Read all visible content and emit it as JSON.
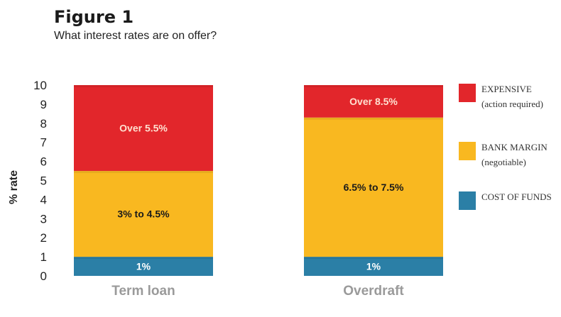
{
  "figure": {
    "title": "Figure 1",
    "subtitle": "What interest rates are on offer?"
  },
  "chart_data": {
    "type": "bar",
    "stacked": true,
    "categories": [
      "Term loan",
      "Overdraft"
    ],
    "ylabel": "% rate",
    "ylim": [
      0,
      10
    ],
    "yticks": [
      0,
      1,
      2,
      3,
      4,
      5,
      6,
      7,
      8,
      9,
      10
    ],
    "grid": false,
    "legend_position": "right",
    "series": [
      {
        "name": "COST OF FUNDS",
        "color": "#2b7fa6",
        "values": [
          1,
          1
        ],
        "labels": [
          "1%",
          "1%"
        ],
        "label_color": "#ffffff"
      },
      {
        "name": "BANK MARGIN (negotiable)",
        "color": "#f9b820",
        "values": [
          4.5,
          7.3
        ],
        "labels": [
          "3% to 4.5%",
          "6.5% to 7.5%"
        ],
        "label_color": "#1a1a1a"
      },
      {
        "name": "EXPENSIVE (action required)",
        "color": "#e2262b",
        "values": [
          4.5,
          1.7
        ],
        "labels": [
          "Over 5.5%",
          "Over 8.5%"
        ],
        "label_color": "#ffe0d0"
      }
    ],
    "legend": [
      {
        "line1": "EXPENSIVE",
        "line2": "(action required)",
        "color": "#e2262b"
      },
      {
        "line1": "BANK MARGIN",
        "line2": "(negotiable)",
        "color": "#f9b820"
      },
      {
        "line1": "COST OF FUNDS",
        "line2": "",
        "color": "#2b7fa6"
      }
    ]
  }
}
